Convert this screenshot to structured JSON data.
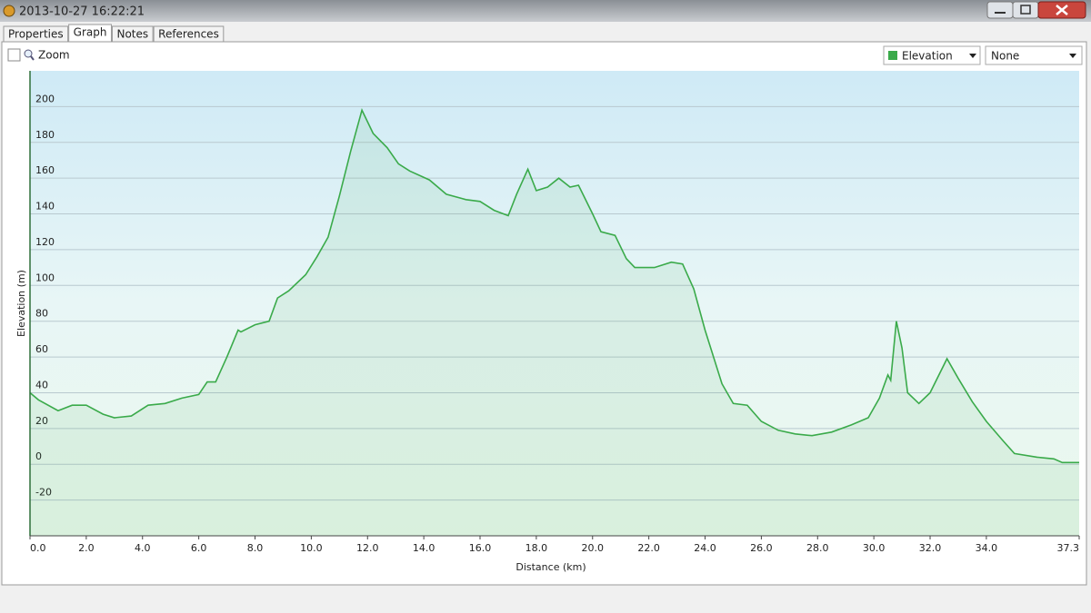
{
  "window": {
    "title": "2013-10-27 16:22:21"
  },
  "tabs": [
    "Properties",
    "Graph",
    "Notes",
    "References"
  ],
  "toolbar": {
    "zoom": "Zoom",
    "second_series": "None"
  },
  "chart_data": {
    "type": "area",
    "x_label": "Distance (km)",
    "y_label": "Elevation (m)",
    "x": [
      0,
      0.3,
      1.0,
      1.5,
      2.0,
      2.6,
      3.0,
      3.6,
      4.2,
      4.8,
      5.4,
      6.0,
      6.3,
      6.6,
      7.0,
      7.4,
      7.5,
      8.0,
      8.5,
      8.8,
      9.2,
      9.8,
      10.2,
      10.6,
      11.0,
      11.4,
      11.8,
      12.2,
      12.7,
      13.1,
      13.5,
      14.2,
      14.8,
      15.5,
      16.0,
      16.5,
      17.0,
      17.3,
      17.7,
      18.0,
      18.4,
      18.8,
      19.2,
      19.5,
      20.0,
      20.3,
      20.8,
      21.2,
      21.5,
      22.2,
      22.8,
      23.2,
      23.6,
      24.0,
      24.6,
      25.0,
      25.5,
      26.0,
      26.6,
      27.2,
      27.8,
      28.5,
      29.2,
      29.8,
      30.2,
      30.5,
      30.6,
      30.8,
      31.0,
      31.2,
      31.6,
      32.0,
      32.6,
      33.0,
      33.5,
      34.0,
      34.6,
      35.0,
      35.8,
      36.4,
      36.7,
      37.3
    ],
    "series": [
      {
        "name": "Elevation",
        "color": "#3aaa4a",
        "values": [
          40,
          36,
          30,
          33,
          33,
          28,
          26,
          27,
          33,
          34,
          37,
          39,
          46,
          46,
          60,
          75,
          74,
          78,
          80,
          93,
          97,
          106,
          116,
          127,
          150,
          175,
          198,
          185,
          177,
          168,
          164,
          159,
          151,
          148,
          147,
          142,
          139,
          151,
          165,
          153,
          155,
          160,
          155,
          156,
          140,
          130,
          128,
          115,
          110,
          110,
          113,
          112,
          98,
          75,
          45,
          34,
          33,
          24,
          19,
          17,
          16,
          18,
          22,
          26,
          37,
          50,
          47,
          80,
          65,
          40,
          34,
          40,
          59,
          48,
          35,
          24,
          13,
          6,
          4,
          3,
          1,
          1
        ]
      }
    ],
    "xlim": [
      0,
      37.3
    ],
    "ylim": [
      -40,
      220
    ],
    "xticks": [
      {
        "value": 0,
        "label": "0.0"
      },
      {
        "value": 2,
        "label": "2.0"
      },
      {
        "value": 4,
        "label": "4.0"
      },
      {
        "value": 6,
        "label": "6.0"
      },
      {
        "value": 8,
        "label": "8.0"
      },
      {
        "value": 10,
        "label": "10.0"
      },
      {
        "value": 12,
        "label": "12.0"
      },
      {
        "value": 14,
        "label": "14.0"
      },
      {
        "value": 16,
        "label": "16.0"
      },
      {
        "value": 18,
        "label": "18.0"
      },
      {
        "value": 20,
        "label": "20.0"
      },
      {
        "value": 22,
        "label": "22.0"
      },
      {
        "value": 24,
        "label": "24.0"
      },
      {
        "value": 26,
        "label": "26.0"
      },
      {
        "value": 28,
        "label": "28.0"
      },
      {
        "value": 30,
        "label": "30.0"
      },
      {
        "value": 32,
        "label": "32.0"
      },
      {
        "value": 34,
        "label": "34.0"
      },
      {
        "value": 37.3,
        "label": "37.3"
      }
    ],
    "yticks": [
      -20,
      0,
      20,
      40,
      60,
      80,
      100,
      120,
      140,
      160,
      180,
      200
    ],
    "grid": true
  }
}
